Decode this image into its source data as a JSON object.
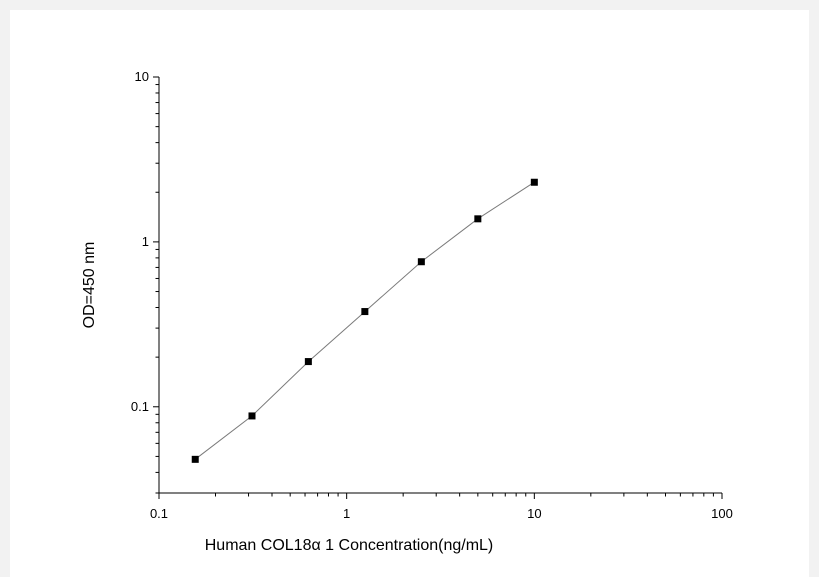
{
  "chart_data": {
    "type": "scatter",
    "title": "",
    "xlabel": "Human  COL18α 1 Concentration(ng/mL)",
    "ylabel": "OD=450 nm",
    "x_scale": "log",
    "y_scale": "log",
    "xlim": [
      0.1,
      100
    ],
    "ylim": [
      0.03,
      10
    ],
    "x_ticks": [
      {
        "value": 0.1,
        "label": "0.1"
      },
      {
        "value": 1,
        "label": "1"
      },
      {
        "value": 10,
        "label": "10"
      },
      {
        "value": 100,
        "label": "100"
      }
    ],
    "y_ticks": [
      {
        "value": 0.1,
        "label": "0.1"
      },
      {
        "value": 1,
        "label": "1"
      },
      {
        "value": 10,
        "label": "10"
      }
    ],
    "grid": false,
    "legend": "none",
    "series": [
      {
        "x": [
          0.156,
          0.313,
          0.625,
          1.25,
          2.5,
          5,
          10
        ],
        "y": [
          0.048,
          0.088,
          0.188,
          0.378,
          0.758,
          1.38,
          2.3
        ],
        "marker": "square",
        "marker_color": "#000000",
        "line_color": "#7a7a7a"
      }
    ]
  }
}
